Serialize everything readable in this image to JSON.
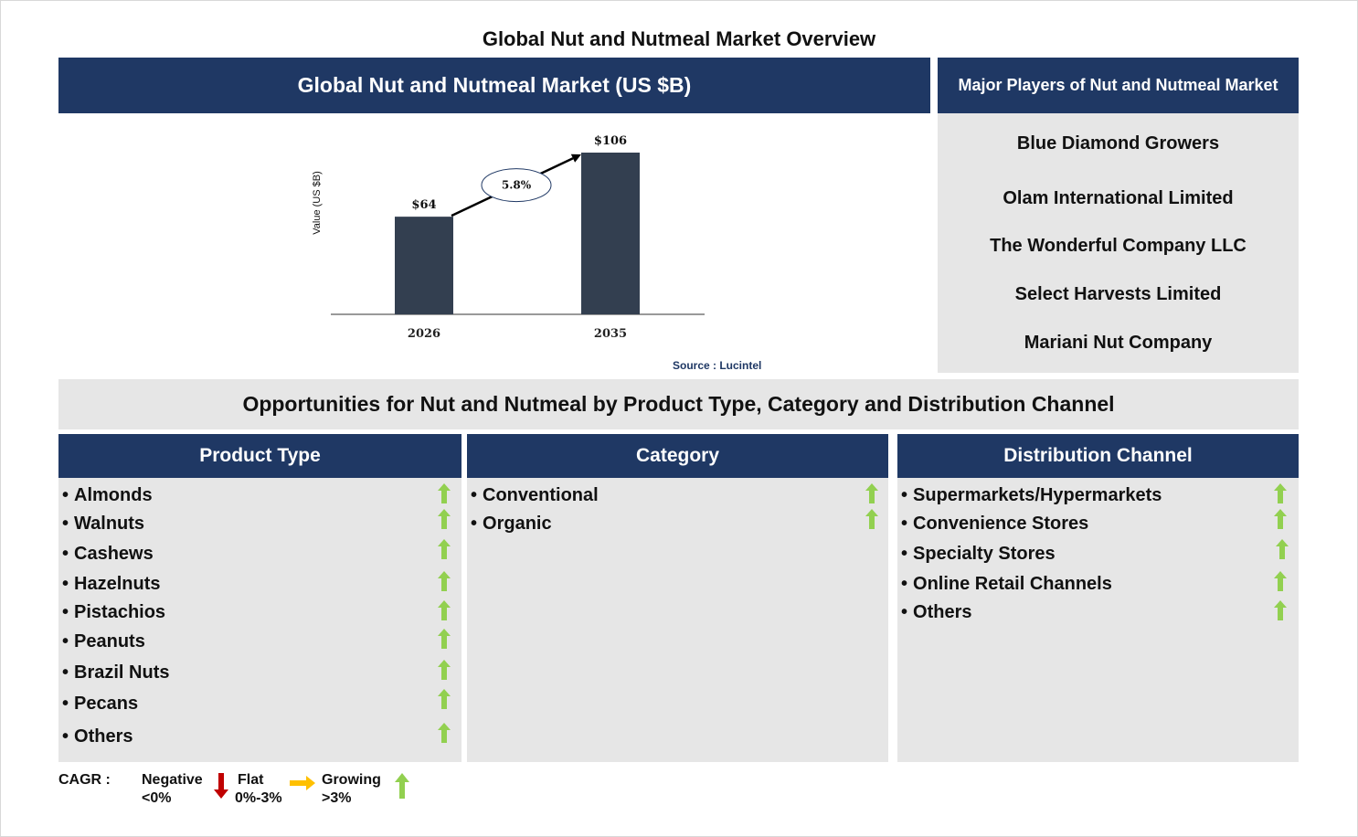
{
  "title": "Global Nut and Nutmeal Market Overview",
  "market_header": "Global Nut and Nutmeal Market (US $B)",
  "players_header": "Major Players of Nut and Nutmeal Market",
  "players": [
    "Blue Diamond Growers",
    "Olam International Limited",
    "The Wonderful Company LLC",
    "Select Harvests Limited",
    "Mariani Nut Company"
  ],
  "source": "Source : Lucintel",
  "opportunities_title": "Opportunities for Nut and Nutmeal by Product Type, Category and Distribution Channel",
  "segments": {
    "product_type": {
      "header": "Product Type",
      "items": [
        "Almonds",
        "Walnuts",
        "Cashews",
        "Hazelnuts",
        "Pistachios",
        "Peanuts",
        "Brazil Nuts",
        "Pecans",
        "Others"
      ],
      "trends": [
        "growing",
        "growing",
        "growing",
        "growing",
        "growing",
        "growing",
        "growing",
        "growing",
        "growing"
      ]
    },
    "category": {
      "header": "Category",
      "items": [
        "Conventional",
        "Organic"
      ],
      "trends": [
        "growing",
        "growing"
      ]
    },
    "distribution_channel": {
      "header": "Distribution Channel",
      "items": [
        "Supermarkets/Hypermarkets",
        "Convenience Stores",
        "Specialty Stores",
        "Online Retail Channels",
        "Others"
      ],
      "trends": [
        "growing",
        "growing",
        "growing",
        "growing",
        "growing"
      ]
    }
  },
  "legend": {
    "cagr_label": "CAGR :",
    "negative": [
      "Negative",
      "<0%"
    ],
    "flat": [
      "Flat",
      "0%-3%"
    ],
    "growing": [
      "Growing",
      ">3%"
    ]
  },
  "colors": {
    "navy": "#1f3864",
    "panel_grey": "#e6e6e6",
    "bar": "#333f50",
    "growing_arrow": "#92d050",
    "negative_arrow": "#c00000",
    "flat_arrow": "#ffc000"
  },
  "chart_data": {
    "type": "bar",
    "categories": [
      "2026",
      "2035"
    ],
    "values": [
      64,
      106
    ],
    "value_labels": [
      "$64",
      "$106"
    ],
    "ylabel": "Value (US $B)",
    "xlabel": "",
    "ylim": [
      0,
      106
    ],
    "cagr_label": "5.8%",
    "grid": false
  }
}
